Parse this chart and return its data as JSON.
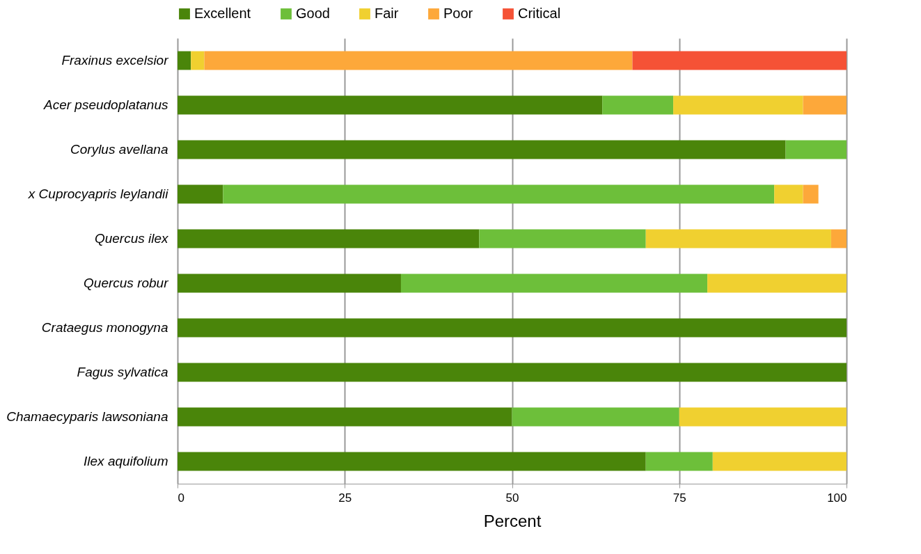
{
  "chart_data": {
    "type": "bar",
    "orientation": "horizontal",
    "stacked": true,
    "xlabel": "Percent",
    "legend": "top",
    "grid": "x",
    "categories": [
      "Fraxinus excelsior",
      "Acer pseudoplatanus",
      "Corylus avellana",
      "x Cuprocyapris leylandii",
      "Quercus ilex",
      "Quercus robur",
      "Crataegus monogyna",
      "Fagus sylvatica",
      "Chamaecyparis lawsoniana",
      "Ilex aquifolium"
    ],
    "xlim": [
      0,
      100
    ],
    "xticks": [
      0,
      25,
      50,
      75,
      100
    ],
    "series": [
      {
        "name": "Excellent",
        "color": "#4a850a",
        "values": [
          2,
          63.5,
          90.9,
          6.8,
          45.1,
          33.4,
          100,
          100,
          50,
          70
        ]
      },
      {
        "name": "Good",
        "color": "#6dbf3a",
        "values": [
          0,
          10.6,
          9.1,
          82.4,
          24.9,
          45.8,
          0,
          0,
          25,
          10
        ]
      },
      {
        "name": "Fair",
        "color": "#f0d030",
        "values": [
          2,
          19.4,
          0,
          4.3,
          27.7,
          20.8,
          0,
          0,
          25,
          20
        ]
      },
      {
        "name": "Poor",
        "color": "#fda83a",
        "values": [
          64,
          6.5,
          0,
          2.3,
          2.3,
          0,
          0,
          0,
          0,
          0
        ]
      },
      {
        "name": "Critical",
        "color": "#f55236",
        "values": [
          32,
          0,
          0,
          0,
          0,
          0,
          0,
          0,
          0,
          0
        ]
      }
    ]
  }
}
